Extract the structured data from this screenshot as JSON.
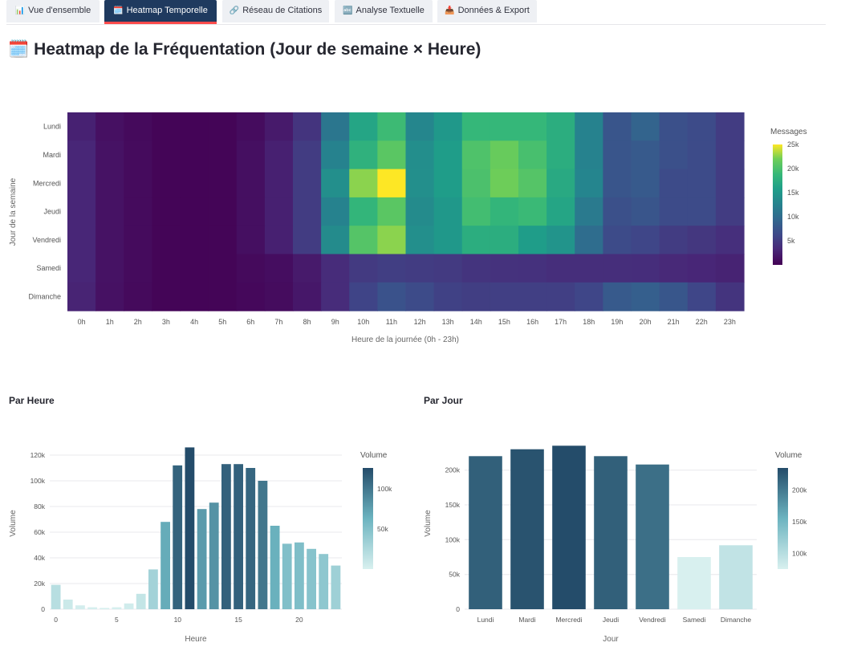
{
  "tabs": [
    {
      "label": "Vue d'ensemble",
      "icon": "📊",
      "icon_name": "bar-chart-icon",
      "active": false
    },
    {
      "label": "Heatmap Temporelle",
      "icon": "🗓️",
      "icon_name": "calendar-icon",
      "active": true
    },
    {
      "label": "Réseau de Citations",
      "icon": "🔗",
      "icon_name": "link-icon",
      "active": false
    },
    {
      "label": "Analyse Textuelle",
      "icon": "🔤",
      "icon_name": "abc-icon",
      "active": false
    },
    {
      "label": "Données & Export",
      "icon": "📥",
      "icon_name": "inbox-tray-icon",
      "active": false
    }
  ],
  "page": {
    "title": "Heatmap de la Fréquentation (Jour de semaine × Heure)",
    "title_icon": "🗓️",
    "section_hour": "Par Heure",
    "section_day": "Par Jour"
  },
  "colors": {
    "accent": "#ff4b4b",
    "tab_active": "#1f3a5f",
    "tab_inactive": "#eef0f4"
  },
  "chart_data": [
    {
      "type": "heatmap",
      "colorscale": "viridis",
      "ylabel": "Jour de la semaine",
      "xlabel": "Heure de la journée (0h - 23h)",
      "colorbar_title": "Messages",
      "colorbar_ticks": [
        5000,
        10000,
        15000,
        20000,
        25000
      ],
      "colorbar_tick_labels": [
        "5k",
        "10k",
        "15k",
        "20k",
        "25k"
      ],
      "zmin": 0,
      "zmax": 25000,
      "x": [
        "0h",
        "1h",
        "2h",
        "3h",
        "4h",
        "5h",
        "6h",
        "7h",
        "8h",
        "9h",
        "10h",
        "11h",
        "12h",
        "13h",
        "14h",
        "15h",
        "16h",
        "17h",
        "18h",
        "19h",
        "20h",
        "21h",
        "22h",
        "23h"
      ],
      "y": [
        "Lundi",
        "Mardi",
        "Mercredi",
        "Jeudi",
        "Vendredi",
        "Samedi",
        "Dimanche"
      ],
      "z": [
        [
          2600,
          1200,
          700,
          300,
          250,
          300,
          900,
          2000,
          4300,
          11000,
          16500,
          19200,
          13000,
          15000,
          18700,
          18700,
          18700,
          17500,
          12500,
          7500,
          9000,
          7000,
          6500,
          5000
        ],
        [
          3000,
          1400,
          800,
          300,
          250,
          300,
          1100,
          2500,
          5000,
          12500,
          18000,
          20800,
          13800,
          15500,
          20200,
          21500,
          19800,
          17500,
          12500,
          7500,
          8000,
          7000,
          6500,
          5000
        ],
        [
          3000,
          1400,
          800,
          300,
          250,
          300,
          1100,
          2500,
          5000,
          14000,
          22500,
          25500,
          14000,
          15500,
          20000,
          21800,
          20500,
          17000,
          12800,
          7500,
          8000,
          6500,
          6500,
          5000
        ],
        [
          3000,
          1400,
          800,
          300,
          250,
          300,
          1100,
          2500,
          5000,
          12500,
          18500,
          20800,
          13500,
          15000,
          19500,
          18500,
          19000,
          16500,
          11500,
          7000,
          7500,
          6500,
          6500,
          5000
        ],
        [
          3000,
          1400,
          800,
          300,
          250,
          300,
          1100,
          2500,
          5000,
          13500,
          20500,
          22500,
          14000,
          15000,
          17500,
          17500,
          15500,
          14500,
          10000,
          6500,
          6000,
          5000,
          4500,
          3800
        ],
        [
          3000,
          1400,
          800,
          300,
          250,
          300,
          700,
          1000,
          2000,
          3500,
          4800,
          5200,
          5000,
          4800,
          4300,
          4100,
          4000,
          3700,
          3700,
          3700,
          3600,
          3200,
          3000,
          2700
        ],
        [
          2800,
          1300,
          700,
          300,
          250,
          300,
          600,
          900,
          1800,
          3500,
          5800,
          7200,
          6500,
          5500,
          5200,
          5300,
          5300,
          5300,
          6000,
          8000,
          8500,
          7600,
          6000,
          4300
        ]
      ]
    },
    {
      "type": "bar",
      "xlabel": "Heure",
      "ylabel": "Volume",
      "colorbar_title": "Volume",
      "colorbar_ticks": [
        50000,
        100000
      ],
      "colorbar_tick_labels": [
        "50k",
        "100k"
      ],
      "x": [
        0,
        1,
        2,
        3,
        4,
        5,
        6,
        7,
        8,
        9,
        10,
        11,
        12,
        13,
        14,
        15,
        16,
        17,
        18,
        19,
        20,
        21,
        22,
        23
      ],
      "values": [
        19000,
        7500,
        3000,
        1500,
        1000,
        1500,
        4500,
        12000,
        31000,
        68000,
        112000,
        126000,
        78000,
        83000,
        113000,
        113000,
        110000,
        100000,
        65000,
        51000,
        52000,
        47000,
        43000,
        34000
      ],
      "xticks": [
        0,
        5,
        10,
        15,
        20
      ],
      "yticks": [
        0,
        20000,
        40000,
        60000,
        80000,
        100000,
        120000
      ],
      "ytick_labels": [
        "0",
        "20k",
        "40k",
        "60k",
        "80k",
        "100k",
        "120k"
      ],
      "ylim": [
        0,
        130000
      ]
    },
    {
      "type": "bar",
      "xlabel": "Jour",
      "ylabel": "Volume",
      "colorbar_title": "Volume",
      "colorbar_ticks": [
        100000,
        150000,
        200000
      ],
      "colorbar_tick_labels": [
        "100k",
        "150k",
        "200k"
      ],
      "categories": [
        "Lundi",
        "Mardi",
        "Mercredi",
        "Jeudi",
        "Vendredi",
        "Samedi",
        "Dimanche"
      ],
      "values": [
        220000,
        230000,
        235000,
        220000,
        208000,
        75000,
        92000
      ],
      "yticks": [
        0,
        50000,
        100000,
        150000,
        200000
      ],
      "ytick_labels": [
        "0",
        "50k",
        "100k",
        "150k",
        "200k"
      ],
      "ylim": [
        0,
        240000
      ]
    }
  ]
}
